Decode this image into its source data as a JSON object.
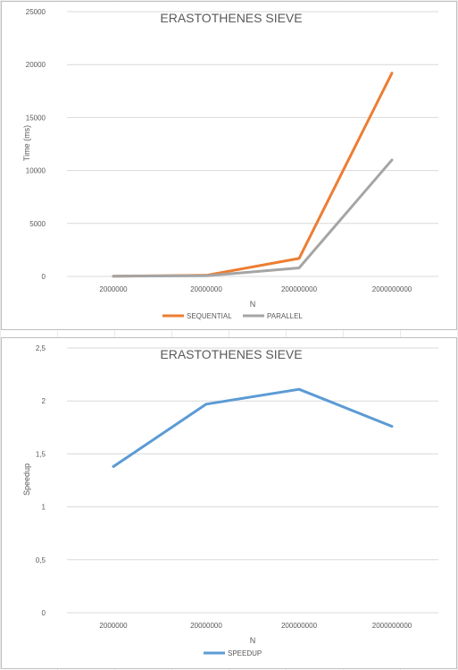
{
  "chart_data": [
    {
      "type": "line",
      "title": "ERASTOTHENES SIEVE",
      "xlabel": "N",
      "ylabel": "Time (ms)",
      "categories": [
        "2000000",
        "20000000",
        "200000000",
        "2000000000"
      ],
      "ylim": [
        0,
        25000
      ],
      "yticks": [
        "0",
        "5000",
        "10000",
        "15000",
        "20000",
        "25000"
      ],
      "grid": true,
      "legend_position": "bottom",
      "series": [
        {
          "name": "SEQUENTIAL",
          "color": "#ed7d31",
          "values": [
            20,
            100,
            1700,
            19200
          ]
        },
        {
          "name": "PARALLEL",
          "color": "#a5a5a5",
          "values": [
            15,
            60,
            800,
            11000
          ]
        }
      ]
    },
    {
      "type": "line",
      "title": "ERASTOTHENES SIEVE",
      "xlabel": "N",
      "ylabel": "Speedup",
      "categories": [
        "2000000",
        "20000000",
        "200000000",
        "2000000000"
      ],
      "ylim": [
        0,
        2.5
      ],
      "yticks": [
        "0",
        "0,5",
        "1",
        "1,5",
        "2",
        "2,5"
      ],
      "grid": true,
      "legend_position": "bottom",
      "series": [
        {
          "name": "SPEEDUP",
          "color": "#5b9bd5",
          "values": [
            1.38,
            1.97,
            2.11,
            1.76
          ]
        }
      ]
    }
  ]
}
